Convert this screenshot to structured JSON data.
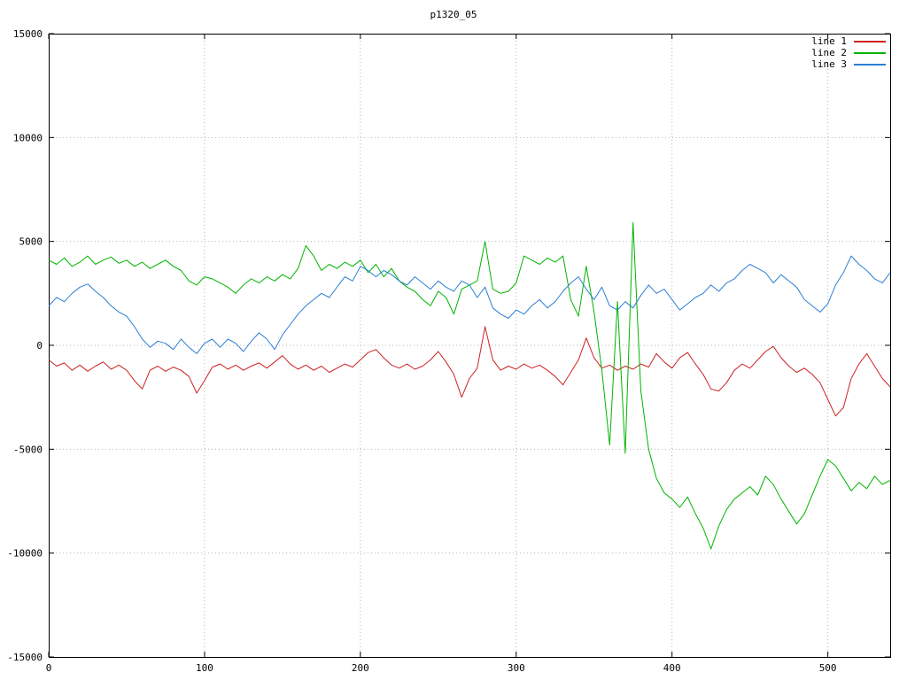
{
  "title": "p1320_05",
  "legend": {
    "entries": [
      {
        "label": "line 1",
        "color": "#cc2222"
      },
      {
        "label": "line 2",
        "color": "#00b400"
      },
      {
        "label": "line 3",
        "color": "#2b7fd4"
      }
    ]
  },
  "chart_data": {
    "type": "line",
    "title": "p1320_05",
    "xlabel": "",
    "ylabel": "",
    "xlim": [
      0,
      540
    ],
    "ylim": [
      -15000,
      15000
    ],
    "x_ticks": [
      0,
      100,
      200,
      300,
      400,
      500
    ],
    "y_ticks": [
      -15000,
      -10000,
      -5000,
      0,
      5000,
      10000,
      15000
    ],
    "grid": "dotted",
    "legend_position": "top-right",
    "x_start": 0,
    "x_step": 5,
    "series": [
      {
        "name": "line 1",
        "color": "#cc2222",
        "values": [
          -700,
          -1000,
          -850,
          -1200,
          -950,
          -1250,
          -1000,
          -800,
          -1150,
          -950,
          -1200,
          -1700,
          -2100,
          -1200,
          -1000,
          -1250,
          -1050,
          -1200,
          -1500,
          -2300,
          -1700,
          -1050,
          -900,
          -1150,
          -950,
          -1200,
          -1000,
          -850,
          -1100,
          -800,
          -500,
          -900,
          -1150,
          -950,
          -1200,
          -1000,
          -1300,
          -1100,
          -900,
          -1050,
          -700,
          -350,
          -200,
          -600,
          -950,
          -1100,
          -900,
          -1150,
          -1000,
          -700,
          -300,
          -800,
          -1400,
          -2500,
          -1600,
          -1100,
          900,
          -700,
          -1200,
          -1000,
          -1150,
          -900,
          -1100,
          -950,
          -1200,
          -1500,
          -1900,
          -1300,
          -700,
          350,
          -600,
          -1100,
          -950,
          -1200,
          -1000,
          -1150,
          -900,
          -1050,
          -400,
          -800,
          -1100,
          -600,
          -350,
          -900,
          -1400,
          -2100,
          -2200,
          -1800,
          -1200,
          -900,
          -1100,
          -700,
          -300,
          -50,
          -600,
          -1000,
          -1300,
          -1100,
          -1400,
          -1800,
          -2600,
          -3400,
          -3000,
          -1600,
          -900,
          -400,
          -1000,
          -1600,
          -2000
        ]
      },
      {
        "name": "line 2",
        "color": "#00b400",
        "values": [
          4100,
          3900,
          4200,
          3800,
          4000,
          4300,
          3900,
          4100,
          4250,
          3950,
          4100,
          3800,
          4000,
          3700,
          3900,
          4100,
          3800,
          3600,
          3100,
          2900,
          3300,
          3200,
          3000,
          2800,
          2500,
          2900,
          3200,
          3000,
          3300,
          3100,
          3400,
          3200,
          3700,
          4800,
          4300,
          3600,
          3900,
          3700,
          4000,
          3800,
          4100,
          3500,
          3900,
          3300,
          3700,
          3100,
          2800,
          2600,
          2200,
          1900,
          2600,
          2300,
          1500,
          2700,
          2900,
          3100,
          5000,
          2700,
          2500,
          2600,
          3000,
          4300,
          4100,
          3900,
          4200,
          4000,
          4300,
          2200,
          1400,
          3800,
          1600,
          -1200,
          -4800,
          2100,
          -5200,
          5900,
          -2200,
          -5000,
          -6400,
          -7100,
          -7400,
          -7800,
          -7300,
          -8100,
          -8800,
          -9800,
          -8700,
          -7900,
          -7400,
          -7100,
          -6800,
          -7200,
          -6300,
          -6700,
          -7400,
          -8000,
          -8600,
          -8100,
          -7200,
          -6300,
          -5500,
          -5800,
          -6400,
          -7000,
          -6600,
          -6900,
          -6300,
          -6700,
          -6500
        ]
      },
      {
        "name": "line 3",
        "color": "#2b7fd4",
        "values": [
          1900,
          2300,
          2100,
          2500,
          2800,
          2950,
          2600,
          2300,
          1900,
          1600,
          1400,
          900,
          300,
          -100,
          200,
          100,
          -200,
          300,
          -100,
          -400,
          100,
          300,
          -100,
          300,
          100,
          -300,
          200,
          600,
          300,
          -200,
          500,
          1000,
          1500,
          1900,
          2200,
          2500,
          2300,
          2800,
          3300,
          3100,
          3800,
          3600,
          3300,
          3600,
          3400,
          3100,
          2900,
          3300,
          3000,
          2700,
          3100,
          2800,
          2600,
          3100,
          2900,
          2300,
          2800,
          1800,
          1500,
          1300,
          1700,
          1500,
          1900,
          2200,
          1800,
          2100,
          2600,
          3000,
          3300,
          2700,
          2200,
          2800,
          1900,
          1700,
          2100,
          1800,
          2400,
          2900,
          2500,
          2700,
          2200,
          1700,
          2000,
          2300,
          2500,
          2900,
          2600,
          3000,
          3200,
          3600,
          3900,
          3700,
          3500,
          3000,
          3400,
          3100,
          2800,
          2200,
          1900,
          1600,
          2000,
          2900,
          3500,
          4300,
          3900,
          3600,
          3200,
          3000,
          3500
        ]
      }
    ]
  }
}
